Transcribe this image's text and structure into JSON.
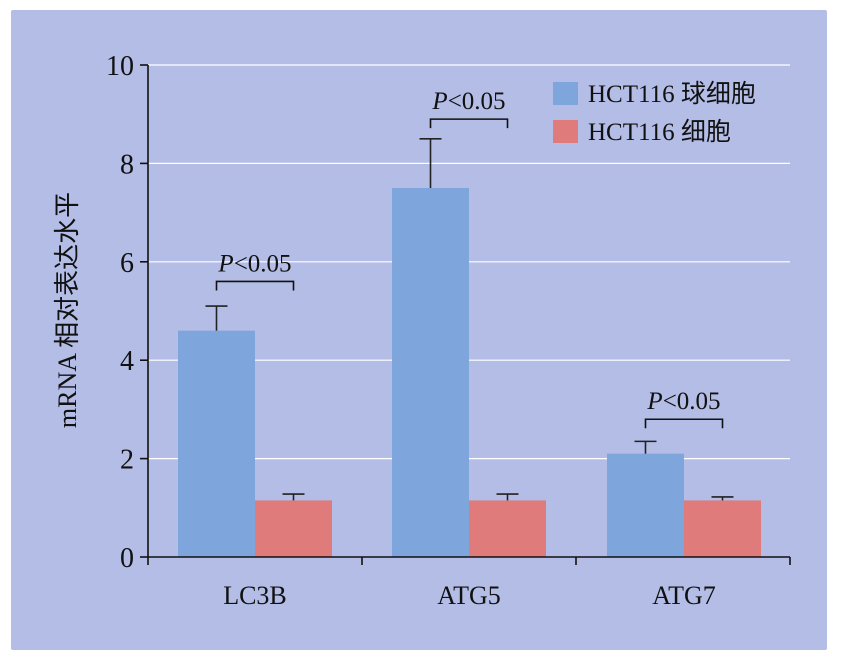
{
  "chart_data": {
    "type": "bar",
    "title": "",
    "xlabel": "",
    "ylabel": "mRNA 相对表达水平",
    "ylim": [
      0,
      10
    ],
    "yticks": [
      0,
      2,
      4,
      6,
      8,
      10
    ],
    "categories": [
      "LC3B",
      "ATG5",
      "ATG7"
    ],
    "series": [
      {
        "name": "HCT116 球细胞",
        "color": "#7fa6dc",
        "values": [
          4.6,
          7.5,
          2.1
        ],
        "errors": [
          0.5,
          1.0,
          0.25
        ]
      },
      {
        "name": "HCT116 细胞",
        "color": "#df7b7b",
        "values": [
          1.15,
          1.15,
          1.15
        ],
        "errors": [
          0.13,
          0.13,
          0.07
        ]
      }
    ],
    "annotations": [
      {
        "category": "LC3B",
        "text_italic": "P",
        "text_rest": "<0.05",
        "y": 5.6
      },
      {
        "category": "ATG5",
        "text_italic": "P",
        "text_rest": "<0.05",
        "y": 8.9
      },
      {
        "category": "ATG7",
        "text_italic": "P",
        "text_rest": "<0.05",
        "y": 2.8
      }
    ],
    "legend_position": "top-right",
    "grid": true,
    "background": "#b3bde6",
    "grid_color": "#ffffff"
  }
}
